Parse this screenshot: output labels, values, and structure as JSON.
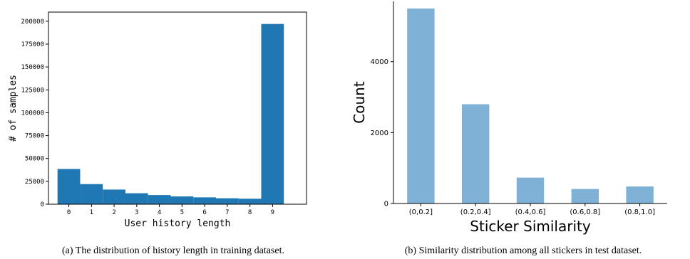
{
  "colors": {
    "left_bar": "#1f77b4",
    "right_bar": "#7fb0d5",
    "axis": "#000000"
  },
  "chart_data": [
    {
      "type": "bar",
      "xlabel": "User history length",
      "ylabel": "# of samples",
      "xlim": [
        -0.9,
        10.5
      ],
      "ylim": [
        0,
        210000
      ],
      "x_ticks": [
        0,
        1,
        2,
        3,
        4,
        5,
        6,
        7,
        8,
        9
      ],
      "y_ticks": [
        0,
        25000,
        50000,
        75000,
        100000,
        125000,
        150000,
        175000,
        200000
      ],
      "bins": [
        {
          "start": -0.5,
          "end": 0.5,
          "value": 38500
        },
        {
          "start": 0.5,
          "end": 1.5,
          "value": 22000
        },
        {
          "start": 1.5,
          "end": 2.5,
          "value": 16000
        },
        {
          "start": 2.5,
          "end": 3.5,
          "value": 12000
        },
        {
          "start": 3.5,
          "end": 4.5,
          "value": 10000
        },
        {
          "start": 4.5,
          "end": 5.5,
          "value": 8500
        },
        {
          "start": 5.5,
          "end": 6.5,
          "value": 7500
        },
        {
          "start": 6.5,
          "end": 7.5,
          "value": 6500
        },
        {
          "start": 7.5,
          "end": 8.5,
          "value": 6000
        },
        {
          "start": 8.5,
          "end": 9.5,
          "value": 197000
        }
      ],
      "grid": false,
      "caption": "(a) The distribution of history length in training dataset."
    },
    {
      "type": "bar",
      "xlabel": "Sticker Similarity",
      "ylabel": "Count",
      "categories": [
        "(0,0.2]",
        "(0.2,0.4]",
        "(0.4,0.6]",
        "(0.6,0.8]",
        "(0.8,1.0]"
      ],
      "values": [
        5500,
        2800,
        730,
        410,
        480
      ],
      "ylim": [
        0,
        5700
      ],
      "y_ticks": [
        0,
        2000,
        4000
      ],
      "grid": false,
      "caption": "(b) Similarity distribution among all stickers in test dataset."
    }
  ]
}
